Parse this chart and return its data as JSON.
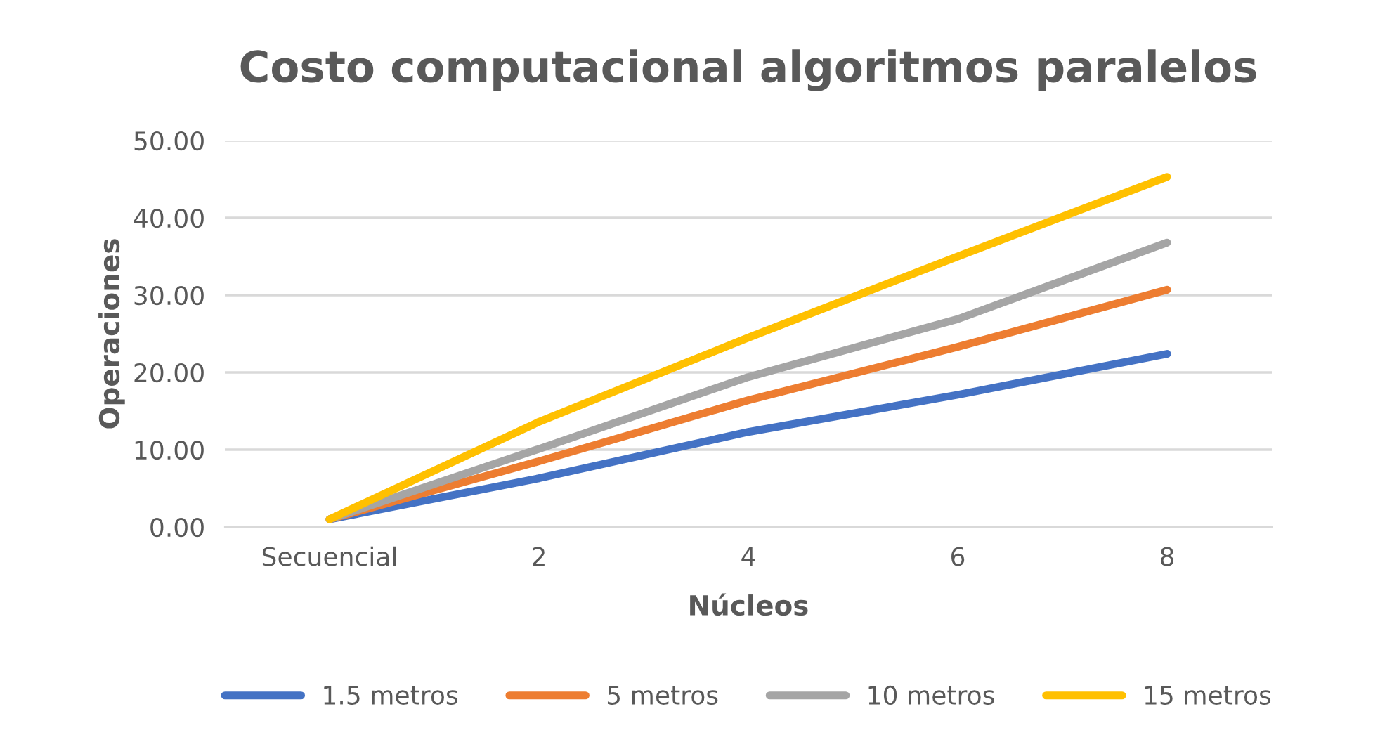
{
  "chart_data": {
    "type": "line",
    "title": "Costo computacional algoritmos paralelos",
    "xlabel": "Núcleos",
    "ylabel": "Operaciones",
    "categories": [
      "Secuencial",
      "2",
      "4",
      "6",
      "8"
    ],
    "series": [
      {
        "name": "1.5 metros",
        "color": "#4472c4",
        "values": [
          1.0,
          6.3,
          12.3,
          17.1,
          22.4
        ]
      },
      {
        "name": "5 metros",
        "color": "#ed7d31",
        "values": [
          1.0,
          8.5,
          16.4,
          23.3,
          30.7
        ]
      },
      {
        "name": "10 metros",
        "color": "#a5a5a5",
        "values": [
          1.0,
          10.1,
          19.4,
          26.9,
          36.8
        ]
      },
      {
        "name": "15 metros",
        "color": "#ffc000",
        "values": [
          1.0,
          13.6,
          24.5,
          35.0,
          45.3
        ]
      }
    ],
    "ylim": [
      0,
      50
    ],
    "yticks": [
      {
        "value": 0,
        "label": "0.00"
      },
      {
        "value": 10,
        "label": "10.00"
      },
      {
        "value": 20,
        "label": "20.00"
      },
      {
        "value": 30,
        "label": "30.00"
      },
      {
        "value": 40,
        "label": "40.00"
      },
      {
        "value": 50,
        "label": "50.00"
      }
    ],
    "grid": "y",
    "legend": "bottom",
    "marker": "none",
    "line_style": "solid"
  }
}
